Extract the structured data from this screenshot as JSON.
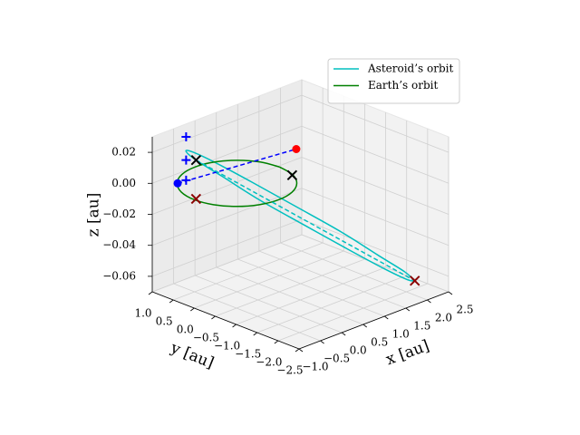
{
  "chart_data": {
    "type": "line3d",
    "xlabel": "x [au]",
    "ylabel": "y [au]",
    "zlabel": "z [au]",
    "xlim": [
      -1,
      2.5
    ],
    "ylim": [
      -2.5,
      1
    ],
    "zlim": [
      -0.07,
      0.03
    ],
    "xticks": [
      {
        "value": -1,
        "label": "−1.0"
      },
      {
        "value": -0.5,
        "label": "−0.5"
      },
      {
        "value": 0,
        "label": "0.0"
      },
      0.5,
      {
        "value": 1,
        "label": "1.0"
      },
      1.5,
      {
        "value": 2,
        "label": "2.0"
      },
      2.5
    ],
    "yticks": [
      {
        "value": 1,
        "label": "1.0"
      },
      0.5,
      {
        "value": 0,
        "label": "0.0"
      },
      {
        "value": -0.5,
        "label": "−0.5"
      },
      {
        "value": -1,
        "label": "−1.0"
      },
      {
        "value": -1.5,
        "label": "−1.5"
      },
      {
        "value": -2,
        "label": "−2.0"
      },
      {
        "value": -2.5,
        "label": "−2.5"
      }
    ],
    "zticks": [
      {
        "value": 0.02,
        "label": "0.02"
      },
      {
        "value": 0,
        "label": "0.00"
      },
      {
        "value": -0.02,
        "label": "−0.02"
      },
      {
        "value": -0.04,
        "label": "−0.04"
      },
      {
        "value": -0.06,
        "label": "−0.06"
      }
    ],
    "grid": true,
    "legend": "upper right",
    "series": [
      {
        "name": "Asteroid’s orbit",
        "color": "#00bfbf",
        "linestyle": "solid",
        "x": [
          2.2,
          1.818,
          1.266,
          0.628,
          0.0,
          -0.522,
          -0.856,
          -0.954,
          -0.8,
          -0.418,
          0.134,
          0.772,
          1.4,
          1.922,
          2.256,
          2.354,
          2.2
        ],
        "y": [
          -2.0,
          -2.215,
          -2.214,
          -1.999,
          -1.6,
          -1.079,
          -0.518,
          0.003,
          0.4,
          0.615,
          0.614,
          0.399,
          0.0,
          -0.521,
          -1.082,
          -1.603,
          -2.0
        ],
        "z": [
          -0.065,
          -0.058,
          -0.045,
          -0.028,
          -0.01,
          0.006,
          0.019,
          0.025,
          0.025,
          0.018,
          0.005,
          -0.012,
          -0.03,
          -0.046,
          -0.059,
          -0.065,
          -0.065
        ]
      },
      {
        "name": "Earth’s orbit",
        "color": "#008000",
        "linestyle": "solid",
        "x": [
          1,
          0.924,
          0.707,
          0.383,
          0,
          -0.383,
          -0.707,
          -0.924,
          -1,
          -0.924,
          -0.707,
          -0.383,
          0,
          0.383,
          0.707,
          0.924,
          1
        ],
        "y": [
          0,
          0.383,
          0.707,
          0.924,
          1,
          0.924,
          0.707,
          0.383,
          0,
          -0.383,
          -0.707,
          -0.924,
          -1,
          -0.924,
          -0.707,
          -0.383,
          0
        ],
        "z": [
          0,
          0,
          0,
          0,
          0,
          0,
          0,
          0,
          0,
          0,
          0,
          0,
          0,
          0,
          0,
          0,
          0
        ]
      },
      {
        "color": "#0000ff",
        "linestyle": "dashed",
        "x": [
          -0.7,
          0.8
        ],
        "y": [
          0.7,
          -0.6
        ],
        "z": [
          0,
          0.02
        ]
      },
      {
        "color": "#00bfbf",
        "linestyle": "dashed",
        "x": [
          -0.954,
          2.2
        ],
        "y": [
          0.003,
          -2.0
        ],
        "z": [
          0.025,
          -0.065
        ]
      },
      {
        "color": "#0000ff",
        "linestyle": "none",
        "marker": "o",
        "x": [
          -0.7
        ],
        "y": [
          0.7
        ],
        "z": [
          0
        ]
      },
      {
        "color": "#ff0000",
        "linestyle": "none",
        "marker": "o",
        "x": [
          0.8
        ],
        "y": [
          -0.6
        ],
        "z": [
          0.02
        ]
      },
      {
        "color": "#0000ff",
        "linestyle": "none",
        "marker": "+",
        "x": [
          -0.6,
          -0.6,
          -0.6
        ],
        "y": [
          0.6,
          0.6,
          0.6
        ],
        "z": [
          0.03,
          0.015,
          0.002
        ]
      },
      {
        "color": "#000000",
        "linestyle": "none",
        "marker": "x",
        "x": [
          -0.954,
          0.9
        ],
        "y": [
          0.003,
          -0.4
        ],
        "z": [
          0.025,
          0
        ]
      },
      {
        "color": "#8b0000",
        "linestyle": "none",
        "marker": "x",
        "x": [
          -0.954,
          2.2
        ],
        "y": [
          0.003,
          -2.0
        ],
        "z": [
          0,
          -0.065
        ]
      }
    ]
  }
}
